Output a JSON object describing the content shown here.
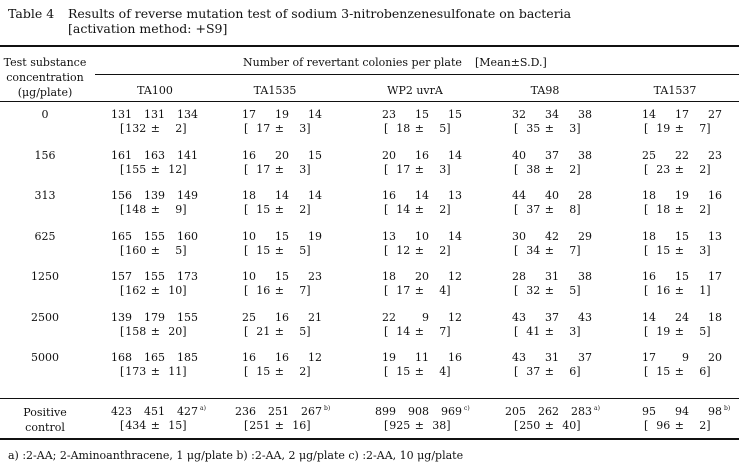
{
  "title": {
    "label": "Table 4",
    "line1": "Results of reverse mutation test of sodium 3-nitrobenzenesulfonate on bacteria",
    "line2": "[activation method: +S9]"
  },
  "header": {
    "conc_line1": "Test substance",
    "conc_line2": "concentration",
    "conc_line3": "(μg/plate)",
    "group": "Number of revertant colonies per plate",
    "stat": "[Mean±S.D.]",
    "strains": [
      "TA100",
      "TA1535",
      "WP2 uvrA",
      "TA98",
      "TA1537"
    ]
  },
  "rows": [
    {
      "conc": "0",
      "cells": [
        {
          "v": [
            "131",
            "131",
            "134"
          ],
          "m": "132",
          "sd": "2"
        },
        {
          "v": [
            "17",
            "19",
            "14"
          ],
          "m": "17",
          "sd": "3"
        },
        {
          "v": [
            "23",
            "15",
            "15"
          ],
          "m": "18",
          "sd": "5"
        },
        {
          "v": [
            "32",
            "34",
            "38"
          ],
          "m": "35",
          "sd": "3"
        },
        {
          "v": [
            "14",
            "17",
            "27"
          ],
          "m": "19",
          "sd": "7"
        }
      ]
    },
    {
      "conc": "156",
      "cells": [
        {
          "v": [
            "161",
            "163",
            "141"
          ],
          "m": "155",
          "sd": "12"
        },
        {
          "v": [
            "16",
            "20",
            "15"
          ],
          "m": "17",
          "sd": "3"
        },
        {
          "v": [
            "20",
            "16",
            "14"
          ],
          "m": "17",
          "sd": "3"
        },
        {
          "v": [
            "40",
            "37",
            "38"
          ],
          "m": "38",
          "sd": "2"
        },
        {
          "v": [
            "25",
            "22",
            "23"
          ],
          "m": "23",
          "sd": "2"
        }
      ]
    },
    {
      "conc": "313",
      "cells": [
        {
          "v": [
            "156",
            "139",
            "149"
          ],
          "m": "148",
          "sd": "9"
        },
        {
          "v": [
            "18",
            "14",
            "14"
          ],
          "m": "15",
          "sd": "2"
        },
        {
          "v": [
            "16",
            "14",
            "13"
          ],
          "m": "14",
          "sd": "2"
        },
        {
          "v": [
            "44",
            "40",
            "28"
          ],
          "m": "37",
          "sd": "8"
        },
        {
          "v": [
            "18",
            "19",
            "16"
          ],
          "m": "18",
          "sd": "2"
        }
      ]
    },
    {
      "conc": "625",
      "cells": [
        {
          "v": [
            "165",
            "155",
            "160"
          ],
          "m": "160",
          "sd": "5"
        },
        {
          "v": [
            "10",
            "15",
            "19"
          ],
          "m": "15",
          "sd": "5"
        },
        {
          "v": [
            "13",
            "10",
            "14"
          ],
          "m": "12",
          "sd": "2"
        },
        {
          "v": [
            "30",
            "42",
            "29"
          ],
          "m": "34",
          "sd": "7"
        },
        {
          "v": [
            "18",
            "15",
            "13"
          ],
          "m": "15",
          "sd": "3"
        }
      ]
    },
    {
      "conc": "1250",
      "cells": [
        {
          "v": [
            "157",
            "155",
            "173"
          ],
          "m": "162",
          "sd": "10"
        },
        {
          "v": [
            "10",
            "15",
            "23"
          ],
          "m": "16",
          "sd": "7"
        },
        {
          "v": [
            "18",
            "20",
            "12"
          ],
          "m": "17",
          "sd": "4"
        },
        {
          "v": [
            "28",
            "31",
            "38"
          ],
          "m": "32",
          "sd": "5"
        },
        {
          "v": [
            "16",
            "15",
            "17"
          ],
          "m": "16",
          "sd": "1"
        }
      ]
    },
    {
      "conc": "2500",
      "cells": [
        {
          "v": [
            "139",
            "179",
            "155"
          ],
          "m": "158",
          "sd": "20"
        },
        {
          "v": [
            "25",
            "16",
            "21"
          ],
          "m": "21",
          "sd": "5"
        },
        {
          "v": [
            "22",
            "9",
            "12"
          ],
          "m": "14",
          "sd": "7"
        },
        {
          "v": [
            "43",
            "37",
            "43"
          ],
          "m": "41",
          "sd": "3"
        },
        {
          "v": [
            "14",
            "24",
            "18"
          ],
          "m": "19",
          "sd": "5"
        }
      ]
    },
    {
      "conc": "5000",
      "cells": [
        {
          "v": [
            "168",
            "165",
            "185"
          ],
          "m": "173",
          "sd": "11"
        },
        {
          "v": [
            "16",
            "16",
            "12"
          ],
          "m": "15",
          "sd": "2"
        },
        {
          "v": [
            "19",
            "11",
            "16"
          ],
          "m": "15",
          "sd": "4"
        },
        {
          "v": [
            "43",
            "31",
            "37"
          ],
          "m": "37",
          "sd": "6"
        },
        {
          "v": [
            "17",
            "9",
            "20"
          ],
          "m": "15",
          "sd": "6"
        }
      ]
    }
  ],
  "positive": {
    "label1": "Positive",
    "label2": "control",
    "cells": [
      {
        "v": [
          "423",
          "451",
          "427"
        ],
        "note": "a)",
        "m": "434",
        "sd": "15"
      },
      {
        "v": [
          "236",
          "251",
          "267"
        ],
        "note": "b)",
        "m": "251",
        "sd": "16"
      },
      {
        "v": [
          "899",
          "908",
          "969"
        ],
        "note": "c)",
        "m": "925",
        "sd": "38"
      },
      {
        "v": [
          "205",
          "262",
          "283"
        ],
        "note": "a)",
        "m": "250",
        "sd": "40"
      },
      {
        "v": [
          "95",
          "94",
          "98"
        ],
        "note": "b)",
        "m": "96",
        "sd": "2"
      }
    ]
  },
  "footnote": "a) :2-AA; 2-Aminoanthracene, 1 μg/plate   b) :2-AA, 2 μg/plate   c) :2-AA, 10 μg/plate",
  "pm": "±"
}
